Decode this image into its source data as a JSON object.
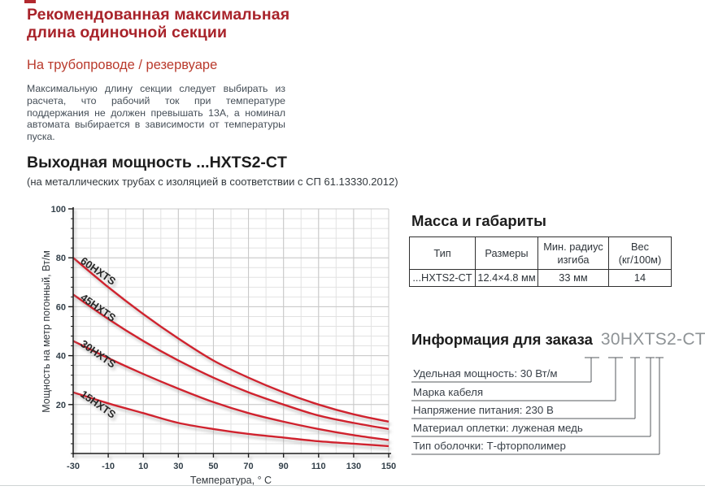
{
  "page": {
    "title_line1": "Рекомендованная максимальная",
    "title_line2": "длина одиночной секции",
    "subtitle": "На трубопроводе / резервуаре",
    "intro": "Максимальную длину секции следует выбирать из расчета, что рабочий ток при температуре поддержания не должен превышать 13А, а номинал автомата выбирается в зависимости от температуры пуска."
  },
  "power_section": {
    "heading": "Выходная мощность ...HXTS2-CT",
    "subheading": "(на металлических трубах с изоляцией в соответствии с СП 61.13330.2012)"
  },
  "chart_data": {
    "type": "line",
    "x": [
      -30,
      -10,
      10,
      30,
      50,
      70,
      90,
      110,
      130,
      150
    ],
    "series": [
      {
        "name": "60HXTS",
        "values": [
          80,
          68,
          57,
          47,
          38,
          31,
          25,
          20,
          16,
          13
        ]
      },
      {
        "name": "45HXTS",
        "values": [
          65,
          55,
          46,
          38,
          31,
          25,
          20,
          15.5,
          12.5,
          10
        ]
      },
      {
        "name": "30HXTS",
        "values": [
          46,
          39,
          32.5,
          26.5,
          21,
          16.5,
          13,
          10,
          7.5,
          5.5
        ]
      },
      {
        "name": "15HXTS",
        "values": [
          25,
          20.5,
          16.5,
          12.5,
          10,
          8,
          6.5,
          5,
          4,
          3
        ]
      }
    ],
    "xlabel": "Температура, ° C",
    "ylabel": "Мощность на метр погонный, Вт/м",
    "xlim": [
      -30,
      150
    ],
    "ylim": [
      0,
      100
    ],
    "x_ticks": [
      -30,
      -10,
      10,
      30,
      50,
      70,
      90,
      110,
      130,
      150
    ],
    "y_ticks": [
      20,
      40,
      60,
      80,
      100
    ],
    "x_minor_step": 10,
    "y_minor_step": 4,
    "grid": true,
    "legend_position": "on-curve-labels",
    "line_color": "#d0212d"
  },
  "mass_table": {
    "heading": "Масса и габариты",
    "columns": [
      "Тип",
      "Размеры",
      "Мин. радиус\nизгиба",
      "Вес\n(кг/100м)"
    ],
    "row": [
      "...HXTS2-CT",
      "12.4×4.8 мм",
      "33 мм",
      "14"
    ]
  },
  "order_info": {
    "heading": "Информация для заказа",
    "code": "30HXTS2-CT",
    "items": [
      {
        "label": "Удельная мощность: 30 Вт/м",
        "code_part": "30"
      },
      {
        "label": "Марка кабеля",
        "code_part": "HXTS"
      },
      {
        "label": "Напряжение питания: 230 В",
        "code_part": "2"
      },
      {
        "label": "Материал оплетки: луженая медь",
        "code_part": "C"
      },
      {
        "label": "Тип оболочки: Т-фторполимер",
        "code_part": "T"
      }
    ]
  },
  "colors": {
    "title_red": "#a8232a",
    "subtitle_red": "#b93a2c",
    "curve_red": "#d0212d",
    "code_gray": "#8e9396",
    "grid_minor": "#e2e2e2",
    "grid_major": "#c8c8c8",
    "axis_black": "#1a1a1a",
    "tick_label": "#33404a"
  }
}
